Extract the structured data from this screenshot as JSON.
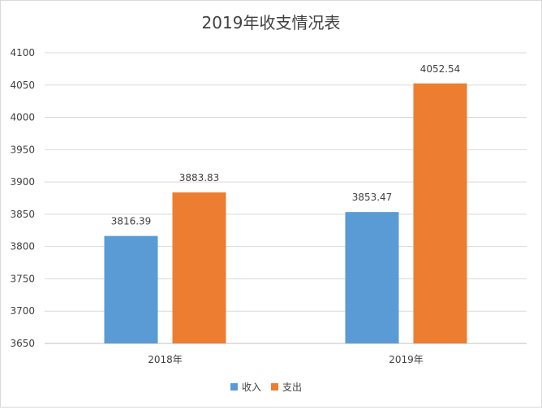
{
  "chart_data": {
    "type": "bar",
    "title": "2019年收支情况表",
    "categories": [
      "2018年",
      "2019年"
    ],
    "series": [
      {
        "name": "收入",
        "color": "#5b9bd5",
        "values": [
          3816.39,
          3853.47
        ]
      },
      {
        "name": "支出",
        "color": "#ed7d31",
        "values": [
          3883.83,
          4052.54
        ]
      }
    ],
    "data_labels": [
      [
        "3816.39",
        "3853.47"
      ],
      [
        "3883.83",
        "4052.54"
      ]
    ],
    "y_ticks": [
      3650,
      3700,
      3750,
      3800,
      3850,
      3900,
      3950,
      4000,
      4050,
      4100
    ],
    "ylim": [
      3650,
      4100
    ],
    "grid": true,
    "legend_position": "bottom"
  }
}
